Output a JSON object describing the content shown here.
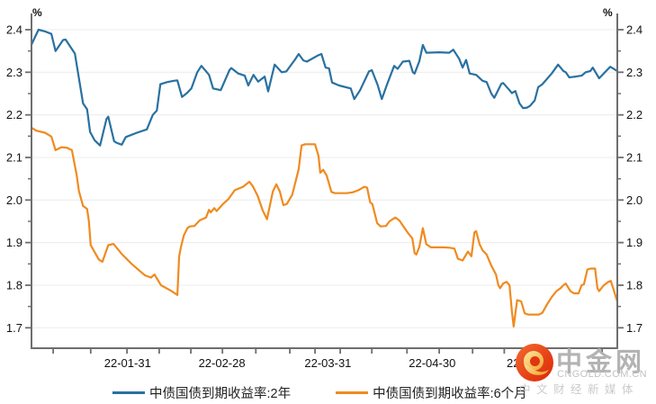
{
  "chart_data": {
    "type": "line",
    "title": "",
    "unit_label": "%",
    "grid": true,
    "legend_position": "bottom",
    "colors": {
      "axis": "#6e6e6e",
      "grid": "#ececec",
      "text": "#111111"
    },
    "y_axis": {
      "min": 1.7,
      "max": 2.4,
      "ticks": [
        2.4,
        2.3,
        2.2,
        2.1,
        2.0,
        1.9,
        1.8,
        1.7
      ],
      "minor_step": 0.05
    },
    "x_axis": {
      "labels": [
        {
          "text": "22-01-31",
          "f": 0.164
        },
        {
          "text": "22-02-28",
          "f": 0.325
        },
        {
          "text": "22-03-31",
          "f": 0.506
        },
        {
          "text": "22-04-30",
          "f": 0.684
        },
        {
          "text": "22-05-31",
          "f": 0.851
        }
      ],
      "tick_fs": [
        0.037,
        0.101,
        0.163,
        0.218,
        0.272,
        0.326,
        0.383,
        0.441,
        0.484,
        0.527,
        0.581,
        0.641,
        0.696,
        0.753,
        0.807,
        0.864,
        0.919,
        0.974
      ]
    },
    "series": [
      {
        "name": "中债国债到期收益率:2年",
        "color": "#2971A0",
        "points": [
          [
            0.0,
            2.365
          ],
          [
            0.005,
            2.38
          ],
          [
            0.012,
            2.4
          ],
          [
            0.023,
            2.396
          ],
          [
            0.034,
            2.39
          ],
          [
            0.041,
            2.35
          ],
          [
            0.054,
            2.376
          ],
          [
            0.058,
            2.377
          ],
          [
            0.074,
            2.344
          ],
          [
            0.088,
            2.227
          ],
          [
            0.095,
            2.213
          ],
          [
            0.1,
            2.16
          ],
          [
            0.108,
            2.14
          ],
          [
            0.117,
            2.128
          ],
          [
            0.128,
            2.19
          ],
          [
            0.131,
            2.196
          ],
          [
            0.141,
            2.138
          ],
          [
            0.146,
            2.134
          ],
          [
            0.154,
            2.13
          ],
          [
            0.161,
            2.148
          ],
          [
            0.18,
            2.158
          ],
          [
            0.197,
            2.166
          ],
          [
            0.207,
            2.2
          ],
          [
            0.214,
            2.21
          ],
          [
            0.22,
            2.272
          ],
          [
            0.232,
            2.277
          ],
          [
            0.243,
            2.28
          ],
          [
            0.249,
            2.281
          ],
          [
            0.257,
            2.242
          ],
          [
            0.266,
            2.252
          ],
          [
            0.273,
            2.262
          ],
          [
            0.283,
            2.3
          ],
          [
            0.29,
            2.315
          ],
          [
            0.303,
            2.294
          ],
          [
            0.31,
            2.262
          ],
          [
            0.323,
            2.258
          ],
          [
            0.338,
            2.305
          ],
          [
            0.341,
            2.31
          ],
          [
            0.353,
            2.297
          ],
          [
            0.364,
            2.292
          ],
          [
            0.37,
            2.269
          ],
          [
            0.379,
            2.294
          ],
          [
            0.387,
            2.278
          ],
          [
            0.398,
            2.29
          ],
          [
            0.404,
            2.255
          ],
          [
            0.415,
            2.318
          ],
          [
            0.427,
            2.3
          ],
          [
            0.435,
            2.302
          ],
          [
            0.45,
            2.33
          ],
          [
            0.456,
            2.343
          ],
          [
            0.464,
            2.328
          ],
          [
            0.47,
            2.325
          ],
          [
            0.488,
            2.339
          ],
          [
            0.495,
            2.343
          ],
          [
            0.502,
            2.311
          ],
          [
            0.508,
            2.309
          ],
          [
            0.513,
            2.276
          ],
          [
            0.525,
            2.269
          ],
          [
            0.545,
            2.262
          ],
          [
            0.551,
            2.237
          ],
          [
            0.561,
            2.258
          ],
          [
            0.576,
            2.302
          ],
          [
            0.581,
            2.305
          ],
          [
            0.591,
            2.27
          ],
          [
            0.598,
            2.237
          ],
          [
            0.607,
            2.272
          ],
          [
            0.619,
            2.315
          ],
          [
            0.625,
            2.308
          ],
          [
            0.634,
            2.325
          ],
          [
            0.645,
            2.327
          ],
          [
            0.651,
            2.3
          ],
          [
            0.654,
            2.297
          ],
          [
            0.662,
            2.326
          ],
          [
            0.668,
            2.364
          ],
          [
            0.674,
            2.346
          ],
          [
            0.696,
            2.347
          ],
          [
            0.713,
            2.346
          ],
          [
            0.72,
            2.353
          ],
          [
            0.73,
            2.332
          ],
          [
            0.736,
            2.311
          ],
          [
            0.742,
            2.329
          ],
          [
            0.748,
            2.297
          ],
          [
            0.759,
            2.294
          ],
          [
            0.77,
            2.28
          ],
          [
            0.777,
            2.277
          ],
          [
            0.785,
            2.25
          ],
          [
            0.79,
            2.24
          ],
          [
            0.802,
            2.273
          ],
          [
            0.805,
            2.275
          ],
          [
            0.816,
            2.258
          ],
          [
            0.82,
            2.251
          ],
          [
            0.826,
            2.256
          ],
          [
            0.833,
            2.227
          ],
          [
            0.839,
            2.216
          ],
          [
            0.846,
            2.217
          ],
          [
            0.851,
            2.221
          ],
          [
            0.859,
            2.234
          ],
          [
            0.865,
            2.265
          ],
          [
            0.872,
            2.272
          ],
          [
            0.888,
            2.297
          ],
          [
            0.899,
            2.318
          ],
          [
            0.908,
            2.303
          ],
          [
            0.912,
            2.3
          ],
          [
            0.918,
            2.288
          ],
          [
            0.929,
            2.29
          ],
          [
            0.939,
            2.292
          ],
          [
            0.946,
            2.3
          ],
          [
            0.954,
            2.303
          ],
          [
            0.958,
            2.311
          ],
          [
            0.969,
            2.286
          ],
          [
            0.981,
            2.303
          ],
          [
            0.988,
            2.313
          ],
          [
            1.0,
            2.303
          ]
        ]
      },
      {
        "name": "中债国债到期收益率:6个月",
        "color": "#EF8B20",
        "points": [
          [
            0.0,
            2.17
          ],
          [
            0.008,
            2.163
          ],
          [
            0.023,
            2.158
          ],
          [
            0.034,
            2.149
          ],
          [
            0.041,
            2.117
          ],
          [
            0.051,
            2.124
          ],
          [
            0.06,
            2.123
          ],
          [
            0.069,
            2.117
          ],
          [
            0.077,
            2.06
          ],
          [
            0.081,
            2.021
          ],
          [
            0.088,
            1.986
          ],
          [
            0.095,
            1.979
          ],
          [
            0.098,
            1.95
          ],
          [
            0.101,
            1.894
          ],
          [
            0.104,
            1.887
          ],
          [
            0.115,
            1.86
          ],
          [
            0.121,
            1.855
          ],
          [
            0.131,
            1.894
          ],
          [
            0.14,
            1.897
          ],
          [
            0.155,
            1.872
          ],
          [
            0.171,
            1.85
          ],
          [
            0.186,
            1.832
          ],
          [
            0.194,
            1.823
          ],
          [
            0.204,
            1.818
          ],
          [
            0.21,
            1.825
          ],
          [
            0.221,
            1.8
          ],
          [
            0.238,
            1.787
          ],
          [
            0.247,
            1.779
          ],
          [
            0.249,
            1.777
          ],
          [
            0.252,
            1.868
          ],
          [
            0.255,
            1.889
          ],
          [
            0.26,
            1.917
          ],
          [
            0.266,
            1.934
          ],
          [
            0.27,
            1.938
          ],
          [
            0.278,
            1.939
          ],
          [
            0.287,
            1.952
          ],
          [
            0.298,
            1.959
          ],
          [
            0.303,
            1.977
          ],
          [
            0.306,
            1.971
          ],
          [
            0.312,
            1.981
          ],
          [
            0.316,
            1.974
          ],
          [
            0.327,
            1.991
          ],
          [
            0.336,
            2.002
          ],
          [
            0.347,
            2.023
          ],
          [
            0.361,
            2.031
          ],
          [
            0.372,
            2.043
          ],
          [
            0.378,
            2.032
          ],
          [
            0.386,
            2.01
          ],
          [
            0.395,
            1.975
          ],
          [
            0.402,
            1.955
          ],
          [
            0.412,
            2.02
          ],
          [
            0.418,
            2.037
          ],
          [
            0.424,
            2.02
          ],
          [
            0.43,
            1.988
          ],
          [
            0.436,
            1.991
          ],
          [
            0.445,
            2.012
          ],
          [
            0.456,
            2.072
          ],
          [
            0.461,
            2.128
          ],
          [
            0.467,
            2.131
          ],
          [
            0.484,
            2.131
          ],
          [
            0.49,
            2.103
          ],
          [
            0.493,
            2.064
          ],
          [
            0.498,
            2.071
          ],
          [
            0.504,
            2.057
          ],
          [
            0.512,
            2.019
          ],
          [
            0.518,
            2.016
          ],
          [
            0.538,
            2.016
          ],
          [
            0.548,
            2.018
          ],
          [
            0.558,
            2.023
          ],
          [
            0.568,
            2.031
          ],
          [
            0.573,
            2.029
          ],
          [
            0.578,
            1.995
          ],
          [
            0.582,
            1.99
          ],
          [
            0.59,
            1.946
          ],
          [
            0.596,
            1.938
          ],
          [
            0.605,
            1.939
          ],
          [
            0.611,
            1.95
          ],
          [
            0.621,
            1.959
          ],
          [
            0.628,
            1.952
          ],
          [
            0.642,
            1.924
          ],
          [
            0.65,
            1.91
          ],
          [
            0.654,
            1.875
          ],
          [
            0.657,
            1.872
          ],
          [
            0.662,
            1.89
          ],
          [
            0.668,
            1.934
          ],
          [
            0.674,
            1.896
          ],
          [
            0.682,
            1.889
          ],
          [
            0.702,
            1.889
          ],
          [
            0.714,
            1.888
          ],
          [
            0.722,
            1.886
          ],
          [
            0.728,
            1.862
          ],
          [
            0.736,
            1.858
          ],
          [
            0.745,
            1.879
          ],
          [
            0.751,
            1.868
          ],
          [
            0.756,
            1.924
          ],
          [
            0.759,
            1.927
          ],
          [
            0.765,
            1.896
          ],
          [
            0.77,
            1.882
          ],
          [
            0.777,
            1.872
          ],
          [
            0.785,
            1.846
          ],
          [
            0.793,
            1.825
          ],
          [
            0.797,
            1.8
          ],
          [
            0.8,
            1.793
          ],
          [
            0.805,
            1.804
          ],
          [
            0.811,
            1.808
          ],
          [
            0.816,
            1.8
          ],
          [
            0.82,
            1.74
          ],
          [
            0.823,
            1.703
          ],
          [
            0.829,
            1.765
          ],
          [
            0.836,
            1.762
          ],
          [
            0.842,
            1.734
          ],
          [
            0.848,
            1.731
          ],
          [
            0.866,
            1.731
          ],
          [
            0.872,
            1.735
          ],
          [
            0.88,
            1.755
          ],
          [
            0.888,
            1.772
          ],
          [
            0.896,
            1.786
          ],
          [
            0.903,
            1.793
          ],
          [
            0.908,
            1.8
          ],
          [
            0.912,
            1.804
          ],
          [
            0.92,
            1.786
          ],
          [
            0.926,
            1.781
          ],
          [
            0.934,
            1.781
          ],
          [
            0.939,
            1.8
          ],
          [
            0.943,
            1.802
          ],
          [
            0.949,
            1.837
          ],
          [
            0.954,
            1.839
          ],
          [
            0.962,
            1.839
          ],
          [
            0.966,
            1.793
          ],
          [
            0.969,
            1.786
          ],
          [
            0.977,
            1.8
          ],
          [
            0.985,
            1.808
          ],
          [
            0.989,
            1.81
          ],
          [
            1.0,
            1.762
          ]
        ]
      }
    ]
  },
  "legend": {
    "items": [
      {
        "label": "中债国债到期收益率:2年",
        "color": "#2971A0"
      },
      {
        "label": "中债国债到期收益率:6个月",
        "color": "#EF8B20"
      }
    ]
  },
  "watermark": {
    "brand": "中金网",
    "domain": "CNGOLD.COM.CN",
    "tagline": "中文财经新媒体",
    "logo_red": "#E23510",
    "logo_gold": "#F3B64A"
  }
}
